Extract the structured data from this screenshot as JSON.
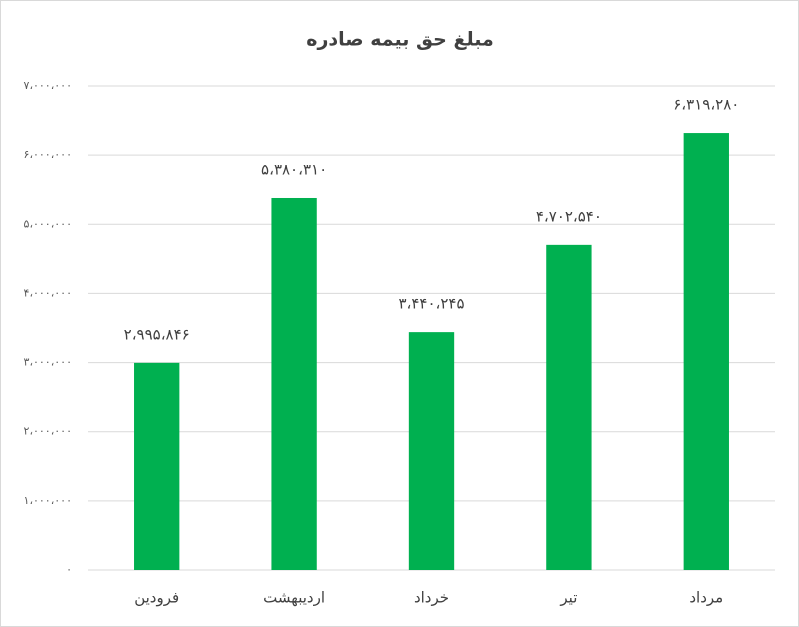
{
  "chart_data": {
    "type": "bar",
    "title": "مبلغ حق بیمه صادره",
    "categories": [
      "فرودین",
      "اردیبهشت",
      "خرداد",
      "تیر",
      "مرداد"
    ],
    "values": [
      2995846,
      5380310,
      3440245,
      4702540,
      6319280
    ],
    "value_labels": [
      "۲،۹۹۵،۸۴۶",
      "۵،۳۸۰،۳۱۰",
      "۳،۴۴۰،۲۴۵",
      "۴،۷۰۲،۵۴۰",
      "۶،۳۱۹،۲۸۰"
    ],
    "color": "#00b050",
    "ylim": [
      0,
      7000000
    ],
    "yticks": [
      {
        "value": 0,
        "label": "۰"
      },
      {
        "value": 1000000,
        "label": "۱،۰۰۰،۰۰۰"
      },
      {
        "value": 2000000,
        "label": "۲،۰۰۰،۰۰۰"
      },
      {
        "value": 3000000,
        "label": "۳،۰۰۰،۰۰۰"
      },
      {
        "value": 4000000,
        "label": "۴،۰۰۰،۰۰۰"
      },
      {
        "value": 5000000,
        "label": "۵،۰۰۰،۰۰۰"
      },
      {
        "value": 6000000,
        "label": "۶،۰۰۰،۰۰۰"
      },
      {
        "value": 7000000,
        "label": "۷،۰۰۰،۰۰۰"
      }
    ],
    "grid": true
  }
}
